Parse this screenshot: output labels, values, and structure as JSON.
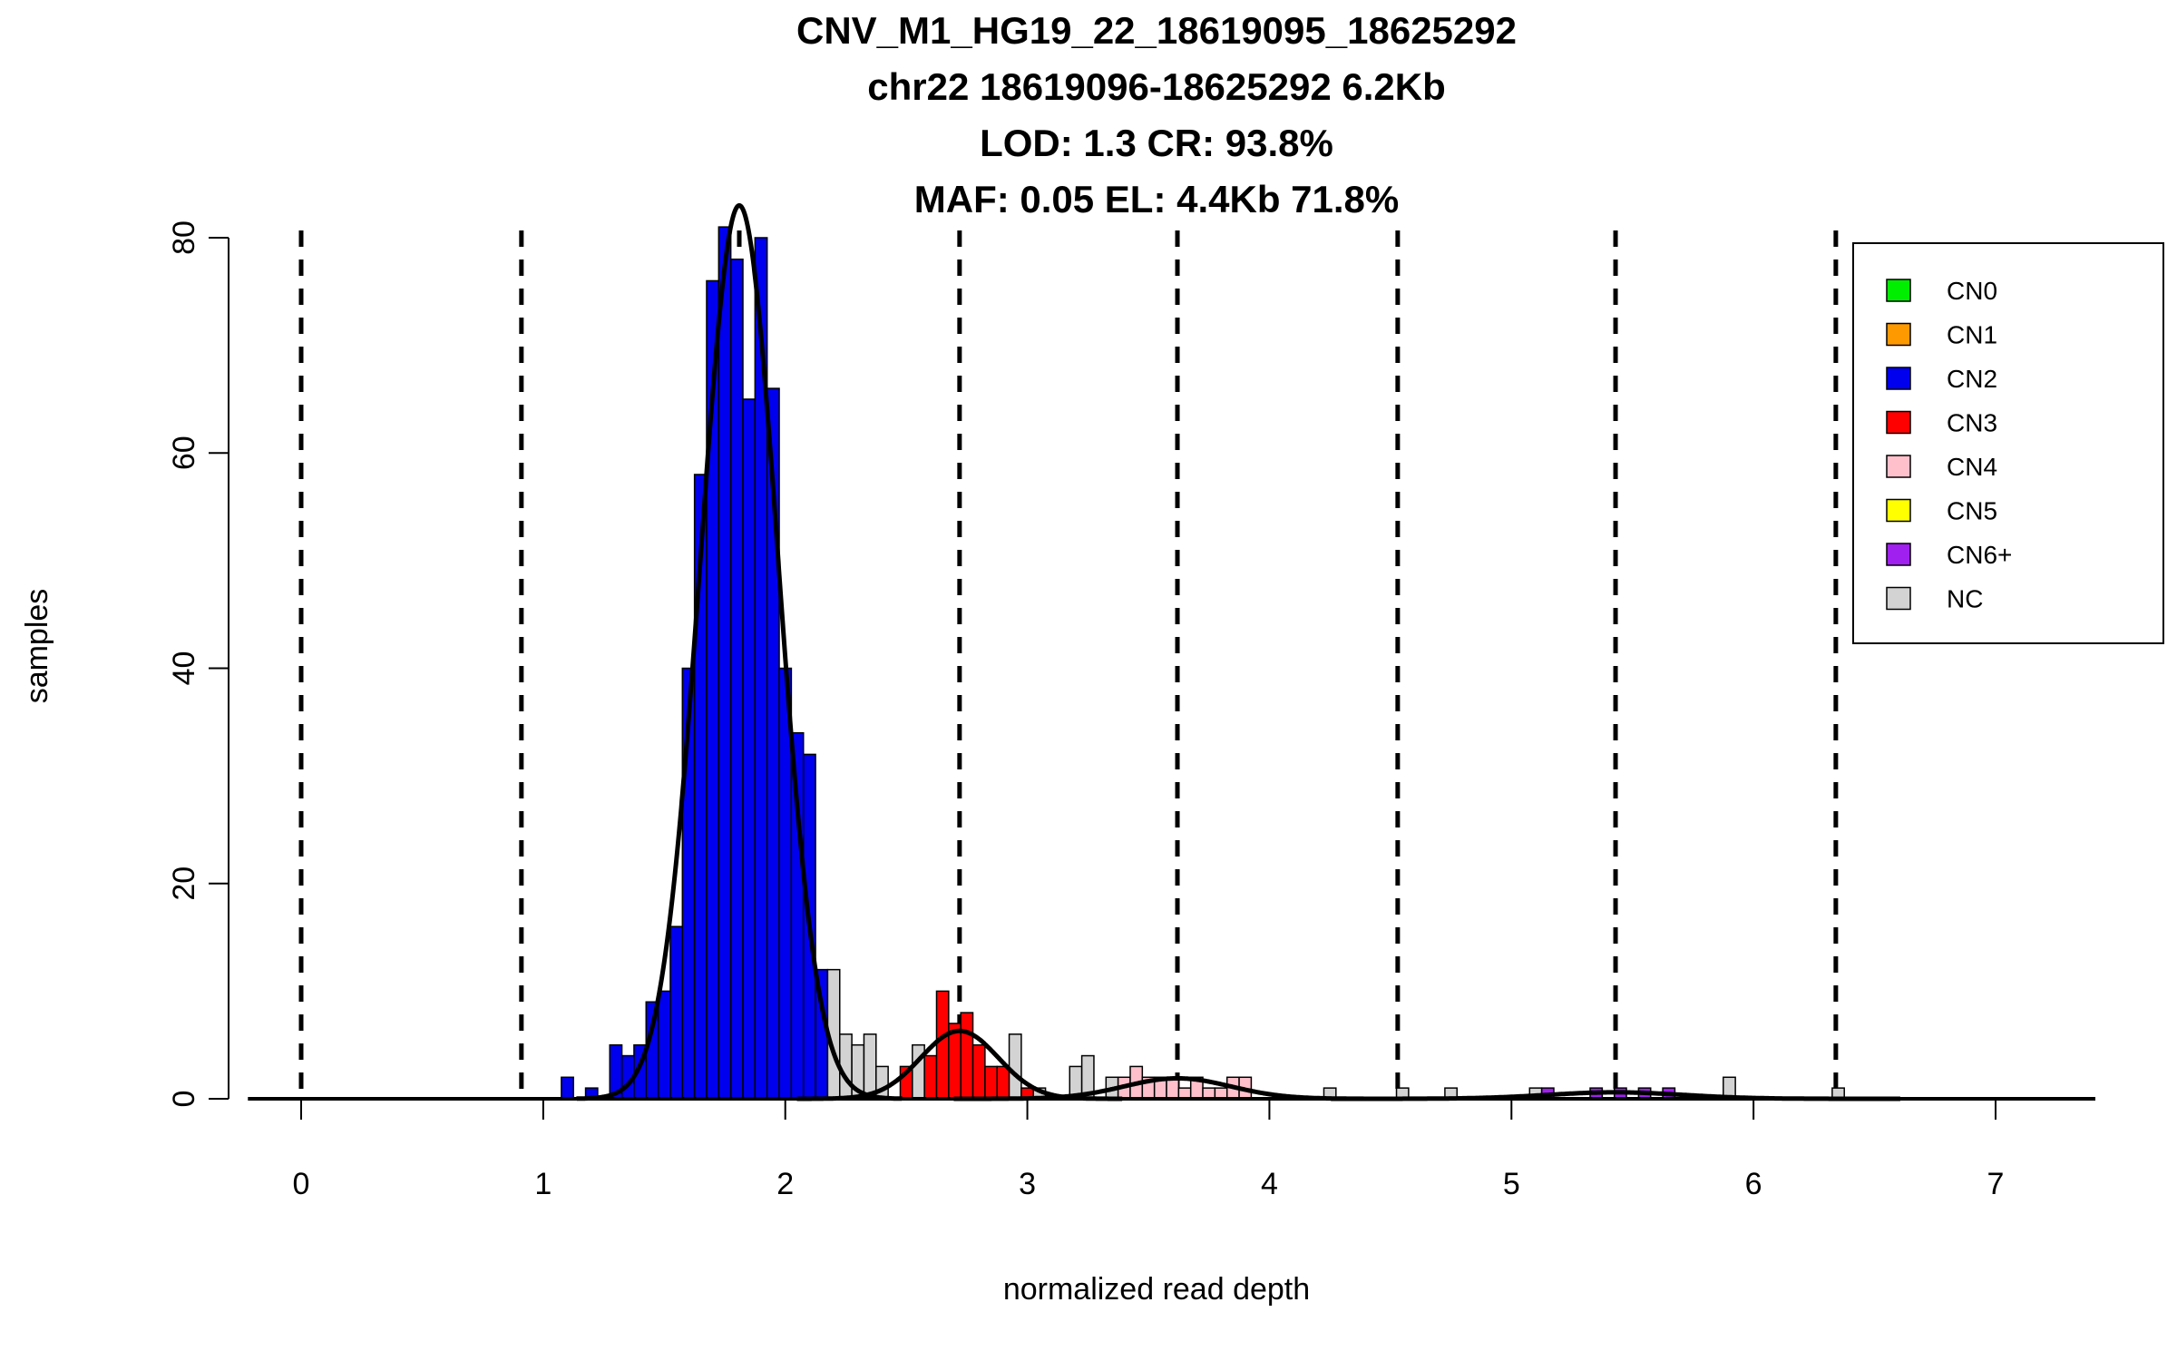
{
  "chart_data": {
    "type": "bar",
    "title_lines": [
      "CNV_M1_HG19_22_18619095_18625292",
      "chr22 18619096-18625292 6.2Kb",
      "LOD: 1.3 CR: 93.8%",
      "MAF: 0.05 EL: 4.4Kb 71.8%"
    ],
    "xlabel": "normalized read depth",
    "ylabel": "samples",
    "xlim": [
      -0.22,
      7.4
    ],
    "ylim": [
      0,
      80
    ],
    "x_ticks": [
      0,
      1,
      2,
      3,
      4,
      5,
      6,
      7
    ],
    "y_ticks": [
      0,
      20,
      40,
      60,
      80
    ],
    "bin_width": 0.05,
    "colors": {
      "CN0": "#00ee00",
      "CN1": "#ff9900",
      "CN2": "#0000ee",
      "CN3": "#ff0000",
      "CN4": "#ffc0cb",
      "CN5": "#ffff00",
      "CN6+": "#a020f0",
      "NC": "#d3d3d3"
    },
    "legend": {
      "position": "top-right",
      "entries": [
        "CN0",
        "CN1",
        "CN2",
        "CN3",
        "CN4",
        "CN5",
        "CN6+",
        "NC"
      ]
    },
    "dashed_lines_x": [
      0,
      0.91,
      1.81,
      2.72,
      3.62,
      4.53,
      5.43,
      6.34
    ],
    "bars": [
      {
        "x": 1.1,
        "count": 2,
        "cn": "CN2"
      },
      {
        "x": 1.2,
        "count": 1,
        "cn": "CN2"
      },
      {
        "x": 1.3,
        "count": 5,
        "cn": "CN2"
      },
      {
        "x": 1.35,
        "count": 4,
        "cn": "CN2"
      },
      {
        "x": 1.4,
        "count": 5,
        "cn": "CN2"
      },
      {
        "x": 1.45,
        "count": 9,
        "cn": "CN2"
      },
      {
        "x": 1.5,
        "count": 10,
        "cn": "CN2"
      },
      {
        "x": 1.55,
        "count": 16,
        "cn": "CN2"
      },
      {
        "x": 1.6,
        "count": 40,
        "cn": "CN2"
      },
      {
        "x": 1.65,
        "count": 58,
        "cn": "CN2"
      },
      {
        "x": 1.7,
        "count": 76,
        "cn": "CN2"
      },
      {
        "x": 1.75,
        "count": 81,
        "cn": "CN2"
      },
      {
        "x": 1.8,
        "count": 78,
        "cn": "CN2"
      },
      {
        "x": 1.85,
        "count": 65,
        "cn": "CN2"
      },
      {
        "x": 1.9,
        "count": 80,
        "cn": "CN2"
      },
      {
        "x": 1.95,
        "count": 66,
        "cn": "CN2"
      },
      {
        "x": 2.0,
        "count": 40,
        "cn": "CN2"
      },
      {
        "x": 2.05,
        "count": 34,
        "cn": "CN2"
      },
      {
        "x": 2.1,
        "count": 32,
        "cn": "CN2"
      },
      {
        "x": 2.15,
        "count": 12,
        "cn": "CN2"
      },
      {
        "x": 2.2,
        "count": 12,
        "cn": "NC"
      },
      {
        "x": 2.25,
        "count": 6,
        "cn": "NC"
      },
      {
        "x": 2.3,
        "count": 5,
        "cn": "NC"
      },
      {
        "x": 2.35,
        "count": 6,
        "cn": "NC"
      },
      {
        "x": 2.4,
        "count": 3,
        "cn": "NC"
      },
      {
        "x": 2.5,
        "count": 3,
        "cn": "CN3"
      },
      {
        "x": 2.55,
        "count": 5,
        "cn": "NC"
      },
      {
        "x": 2.6,
        "count": 4,
        "cn": "CN3"
      },
      {
        "x": 2.65,
        "count": 10,
        "cn": "CN3"
      },
      {
        "x": 2.7,
        "count": 7,
        "cn": "CN3"
      },
      {
        "x": 2.75,
        "count": 8,
        "cn": "CN3"
      },
      {
        "x": 2.8,
        "count": 5,
        "cn": "CN3"
      },
      {
        "x": 2.85,
        "count": 3,
        "cn": "CN3"
      },
      {
        "x": 2.9,
        "count": 3,
        "cn": "CN3"
      },
      {
        "x": 2.95,
        "count": 6,
        "cn": "NC"
      },
      {
        "x": 3.0,
        "count": 1,
        "cn": "CN3"
      },
      {
        "x": 3.05,
        "count": 1,
        "cn": "NC"
      },
      {
        "x": 3.2,
        "count": 3,
        "cn": "NC"
      },
      {
        "x": 3.25,
        "count": 4,
        "cn": "NC"
      },
      {
        "x": 3.35,
        "count": 2,
        "cn": "NC"
      },
      {
        "x": 3.4,
        "count": 2,
        "cn": "CN4"
      },
      {
        "x": 3.45,
        "count": 3,
        "cn": "CN4"
      },
      {
        "x": 3.5,
        "count": 2,
        "cn": "CN4"
      },
      {
        "x": 3.55,
        "count": 2,
        "cn": "CN4"
      },
      {
        "x": 3.6,
        "count": 2,
        "cn": "CN4"
      },
      {
        "x": 3.65,
        "count": 1,
        "cn": "CN4"
      },
      {
        "x": 3.7,
        "count": 2,
        "cn": "CN4"
      },
      {
        "x": 3.75,
        "count": 1,
        "cn": "CN4"
      },
      {
        "x": 3.8,
        "count": 1,
        "cn": "CN4"
      },
      {
        "x": 3.85,
        "count": 2,
        "cn": "CN4"
      },
      {
        "x": 3.9,
        "count": 2,
        "cn": "CN4"
      },
      {
        "x": 4.25,
        "count": 1,
        "cn": "NC"
      },
      {
        "x": 4.55,
        "count": 1,
        "cn": "NC"
      },
      {
        "x": 4.75,
        "count": 1,
        "cn": "NC"
      },
      {
        "x": 5.1,
        "count": 1,
        "cn": "NC"
      },
      {
        "x": 5.15,
        "count": 1,
        "cn": "CN6+"
      },
      {
        "x": 5.35,
        "count": 1,
        "cn": "CN6+"
      },
      {
        "x": 5.45,
        "count": 1,
        "cn": "CN6+"
      },
      {
        "x": 5.55,
        "count": 1,
        "cn": "CN6+"
      },
      {
        "x": 5.65,
        "count": 1,
        "cn": "CN6+"
      },
      {
        "x": 5.9,
        "count": 2,
        "cn": "NC"
      },
      {
        "x": 6.35,
        "count": 1,
        "cn": "NC"
      }
    ],
    "fit_curves": [
      {
        "mean": 1.81,
        "sd": 0.16,
        "peak": 83
      },
      {
        "mean": 2.72,
        "sd": 0.16,
        "peak": 6.3
      },
      {
        "mean": 3.62,
        "sd": 0.22,
        "peak": 1.9
      },
      {
        "mean": 5.43,
        "sd": 0.28,
        "peak": 0.6
      }
    ]
  }
}
